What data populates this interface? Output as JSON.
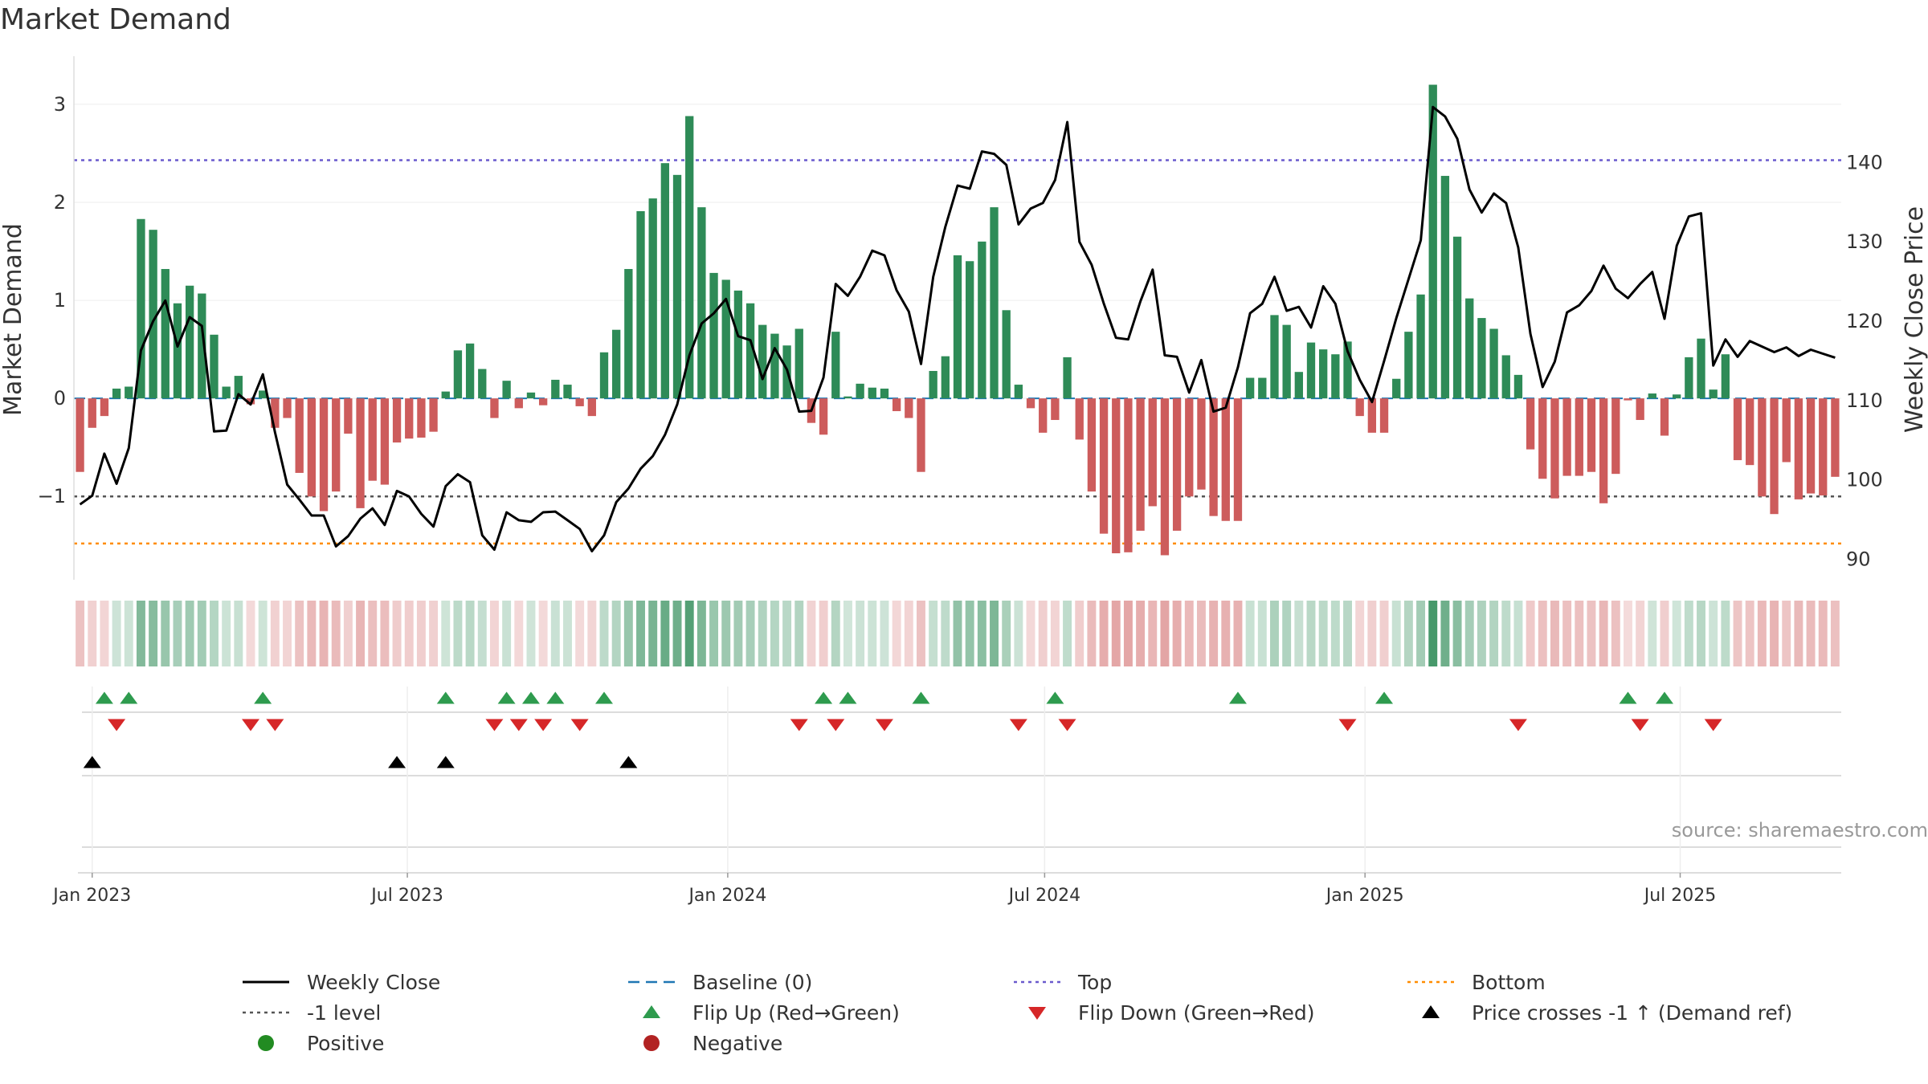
{
  "chart_data": {
    "type": "bar",
    "title": "Market Demand",
    "ylabel": "Market Demand",
    "y2label": "Weekly Close Price",
    "ylim": [
      -1.85,
      3.45
    ],
    "y2lim": [
      87.4,
      152.9
    ],
    "yticks": [
      -1,
      0,
      1,
      2,
      3
    ],
    "y2ticks": [
      90,
      100,
      110,
      120,
      130,
      140
    ],
    "xticks": [
      "Jan 2023",
      "Jul 2023",
      "Jan 2024",
      "Jul 2024",
      "Jan 2025",
      "Jul 2025"
    ],
    "start_date": "2022-12-25",
    "week_step_days": 7,
    "top_level": 2.43,
    "bottom_level": -1.48,
    "minus_one_level": -1,
    "demand": [
      -0.75,
      -0.3,
      -0.18,
      0.1,
      0.12,
      1.83,
      1.72,
      1.32,
      0.97,
      1.15,
      1.07,
      0.65,
      0.12,
      0.23,
      -0.06,
      0.08,
      -0.3,
      -0.2,
      -0.76,
      -1.0,
      -1.15,
      -0.95,
      -0.36,
      -1.12,
      -0.84,
      -0.88,
      -0.45,
      -0.41,
      -0.4,
      -0.34,
      0.07,
      0.49,
      0.56,
      0.3,
      -0.2,
      0.18,
      -0.1,
      0.06,
      -0.07,
      0.19,
      0.14,
      -0.08,
      -0.18,
      0.47,
      0.7,
      1.32,
      1.91,
      2.04,
      2.4,
      2.28,
      2.88,
      1.95,
      1.28,
      1.21,
      1.1,
      0.97,
      0.75,
      0.66,
      0.54,
      0.71,
      -0.25,
      -0.37,
      0.68,
      0.02,
      0.15,
      0.11,
      0.1,
      -0.13,
      -0.2,
      -0.75,
      0.28,
      0.43,
      1.46,
      1.4,
      1.6,
      1.95,
      0.9,
      0.14,
      -0.1,
      -0.35,
      -0.22,
      0.42,
      -0.42,
      -0.95,
      -1.38,
      -1.58,
      -1.57,
      -1.35,
      -1.1,
      -1.6,
      -1.35,
      -1.0,
      -0.93,
      -1.2,
      -1.25,
      -1.25,
      0.21,
      0.21,
      0.85,
      0.75,
      0.27,
      0.57,
      0.5,
      0.45,
      0.58,
      -0.18,
      -0.35,
      -0.35,
      0.2,
      0.68,
      1.06,
      3.2,
      2.27,
      1.65,
      1.02,
      0.82,
      0.71,
      0.44,
      0.24,
      -0.52,
      -0.82,
      -1.02,
      -0.79,
      -0.79,
      -0.75,
      -1.07,
      -0.77,
      -0.02,
      -0.22,
      0.05,
      -0.38,
      0.04,
      0.42,
      0.61,
      0.09,
      0.45,
      -0.63,
      -0.68,
      -1.0,
      -1.18,
      -0.65,
      -1.03,
      -0.97,
      -0.99,
      -0.8
    ],
    "weekly_close": [
      96.9,
      98.0,
      103.3,
      99.5,
      104.0,
      116.3,
      120.0,
      122.6,
      116.8,
      120.5,
      119.4,
      106.1,
      106.2,
      110.8,
      109.5,
      113.3,
      106.0,
      99.4,
      97.5,
      95.5,
      95.5,
      91.6,
      92.9,
      95.1,
      96.4,
      94.3,
      98.6,
      97.9,
      95.7,
      94.1,
      99.2,
      100.7,
      99.7,
      93.0,
      91.2,
      95.9,
      94.9,
      94.7,
      95.9,
      96.0,
      94.9,
      93.8,
      91.0,
      93.0,
      97.2,
      98.9,
      101.4,
      103.0,
      105.7,
      109.5,
      115.7,
      119.7,
      121.0,
      122.8,
      118.1,
      117.6,
      112.7,
      116.6,
      113.9,
      108.6,
      108.7,
      112.9,
      124.7,
      123.2,
      125.6,
      128.9,
      128.3,
      123.9,
      121.2,
      114.6,
      125.6,
      131.9,
      137.1,
      136.7,
      141.4,
      141.1,
      139.7,
      132.2,
      134.2,
      134.9,
      137.8,
      145.1,
      130.0,
      127.1,
      122.2,
      117.9,
      117.7,
      122.5,
      126.5,
      115.7,
      115.5,
      111.0,
      115.1,
      108.6,
      109.1,
      114.2,
      121.0,
      122.2,
      125.6,
      121.3,
      121.8,
      119.2,
      124.4,
      122.2,
      116.2,
      112.6,
      109.8,
      115.0,
      120.4,
      125.3,
      130.2,
      147.0,
      145.8,
      143.0,
      136.6,
      133.7,
      136.1,
      134.9,
      129.3,
      118.4,
      111.7,
      114.9,
      121.1,
      122.0,
      123.8,
      127.0,
      124.1,
      122.9,
      124.7,
      126.2,
      120.3,
      129.5,
      133.2,
      133.6,
      114.4,
      117.7,
      115.5,
      117.5,
      116.8,
      116.1,
      116.7,
      115.6,
      116.4,
      115.9,
      115.4
    ],
    "flip_up_weeks": [
      2,
      4,
      15,
      30,
      35,
      37,
      39,
      43,
      61,
      63,
      69,
      80,
      95,
      107,
      127,
      130
    ],
    "flip_down_weeks": [
      3,
      14,
      16,
      34,
      36,
      38,
      41,
      59,
      62,
      66,
      77,
      81,
      104,
      118,
      128,
      134
    ],
    "cross_weeks": [
      1,
      26,
      30,
      45
    ],
    "source": "source: sharemaestro.com",
    "colors": {
      "positive_bar": "#2e8b57",
      "negative_bar": "#cd5c5c",
      "close_line": "#000000",
      "baseline": "#1f77b4",
      "top": "#6a5acd",
      "bottom": "#ff8c00",
      "minus_one": "#555555",
      "flip_up": "#2e9b4e",
      "flip_down": "#d62728",
      "cross": "#000000",
      "positive_dot": "#228b22",
      "negative_dot": "#b22222"
    }
  },
  "legend": {
    "weekly_close": "Weekly Close",
    "baseline": "Baseline (0)",
    "top": "Top",
    "bottom": "Bottom",
    "minus_one": "-1 level",
    "flip_up": "Flip Up (Red→Green)",
    "flip_down": "Flip Down (Green→Red)",
    "cross": "Price crosses -1 ↑ (Demand ref)",
    "positive": "Positive",
    "negative": "Negative"
  }
}
